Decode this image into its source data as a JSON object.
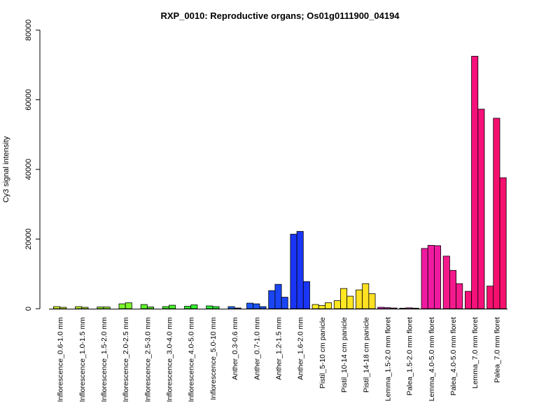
{
  "chart_data": {
    "type": "bar",
    "title": "RXP_0010: Reproductive organs; Os01g0111900_04194",
    "xlabel": "",
    "ylabel": "Cy3 signal intensity",
    "ylim": [
      0,
      80000
    ],
    "yticks": [
      "0",
      "20000",
      "40000",
      "60000",
      "80000"
    ],
    "grid": false,
    "groups": [
      {
        "category": "Inflorescence_0.6-1.0 mm",
        "color": "#d7f52a",
        "values": [
          600,
          400
        ]
      },
      {
        "category": "Inflorescence_1.0-1.5 mm",
        "color": "#bff530",
        "values": [
          600,
          400
        ]
      },
      {
        "category": "Inflorescence_1.5-2.0 mm",
        "color": "#9cf52a",
        "values": [
          500,
          500
        ]
      },
      {
        "category": "Inflorescence_2.0-2.5 mm",
        "color": "#7df52a",
        "values": [
          1400,
          1700
        ]
      },
      {
        "category": "Inflorescence_2.5-3.0 mm",
        "color": "#5ef52a",
        "values": [
          1200,
          500
        ]
      },
      {
        "category": "Inflorescence_3.0-4.0 mm",
        "color": "#45f52a",
        "values": [
          600,
          1000
        ]
      },
      {
        "category": "Inflorescence_4.0-5.0 mm",
        "color": "#30f52a",
        "values": [
          700,
          1100
        ]
      },
      {
        "category": "Inflorescence_5.0-10 mm",
        "color": "#2af536",
        "values": [
          800,
          600
        ]
      },
      {
        "category": "Anther_0.3-0.6 mm",
        "color": "#1f6cf5",
        "values": [
          600,
          200
        ]
      },
      {
        "category": "Anther_0.7-1.0 mm",
        "color": "#1a55f5",
        "values": [
          1600,
          1400,
          600
        ]
      },
      {
        "category": "Anther_1.2-1.5 mm",
        "color": "#1a45f5",
        "values": [
          5200,
          7000,
          3300
        ]
      },
      {
        "category": "Anther_1.6-2.0 mm",
        "color": "#1a35f5",
        "values": [
          21400,
          22200,
          7800
        ]
      },
      {
        "category": "Pistil_5-10 cm panicle",
        "color": "#ffee22",
        "values": [
          1200,
          900,
          1700
        ]
      },
      {
        "category": "Pistil_10-14 cm panicle",
        "color": "#ffe722",
        "values": [
          2300,
          5800,
          3600
        ]
      },
      {
        "category": "Pistil_14-18 cm panicle",
        "color": "#ffe022",
        "values": [
          5400,
          7200,
          4300
        ]
      },
      {
        "category": "Lemma_1.5-2.0 mm floret",
        "color": "#e01ac8",
        "values": [
          400,
          300,
          200
        ]
      },
      {
        "category": "Palea_1.5-2.0 mm floret",
        "color": "#e81ab0",
        "values": [
          150,
          250,
          150
        ]
      },
      {
        "category": "Lemma_4.0-5.0 mm floret",
        "color": "#f01aa0",
        "values": [
          17300,
          18200,
          18100
        ]
      },
      {
        "category": "Palea_4.0-5.0 mm floret",
        "color": "#f51a8c",
        "values": [
          15100,
          11000,
          7200
        ]
      },
      {
        "category": "Lemma_7.0 mm floret",
        "color": "#f5107a",
        "values": [
          5000,
          72500,
          57300
        ]
      },
      {
        "category": "Palea_7.0 mm floret",
        "color": "#f5106e",
        "values": [
          6500,
          54700,
          37600
        ]
      }
    ]
  }
}
